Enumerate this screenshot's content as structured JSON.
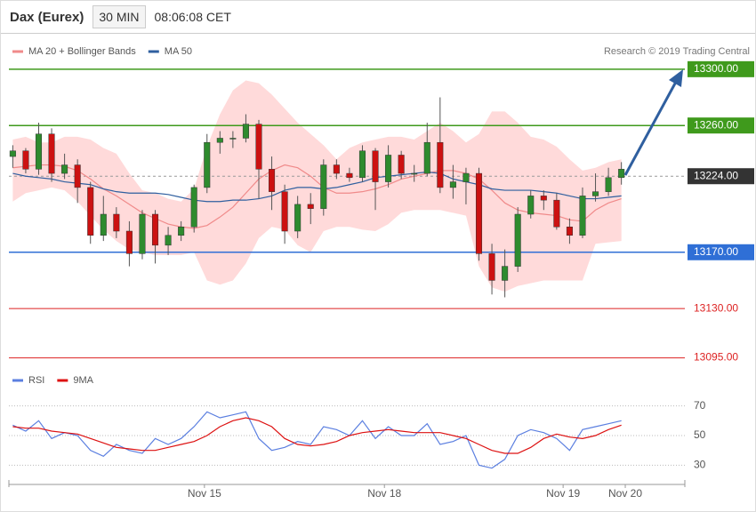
{
  "header": {
    "title": "Dax (Eurex)",
    "interval": "30 MIN",
    "time": "08:06:08 CET"
  },
  "credit": "Research © 2019 Trading Central",
  "chart_data": [
    {
      "type": "candlestick",
      "xlim": [
        -0.3,
        51.9
      ],
      "ylim": [
        13084,
        13310
      ],
      "up_color": "#2e8b2e",
      "down_color": "#cc1111",
      "candles": [
        [
          13238,
          13246,
          13230,
          13242
        ],
        [
          13242,
          13244,
          13226,
          13229
        ],
        [
          13229,
          13262,
          13225,
          13254
        ],
        [
          13254,
          13258,
          13220,
          13226
        ],
        [
          13226,
          13240,
          13222,
          13232
        ],
        [
          13232,
          13236,
          13205,
          13216
        ],
        [
          13216,
          13220,
          13176,
          13182
        ],
        [
          13182,
          13210,
          13178,
          13197
        ],
        [
          13197,
          13202,
          13180,
          13185
        ],
        [
          13185,
          13192,
          13160,
          13169
        ],
        [
          13169,
          13200,
          13165,
          13197
        ],
        [
          13197,
          13200,
          13162,
          13175
        ],
        [
          13175,
          13188,
          13168,
          13182
        ],
        [
          13182,
          13192,
          13178,
          13188
        ],
        [
          13188,
          13218,
          13184,
          13216
        ],
        [
          13216,
          13254,
          13212,
          13248
        ],
        [
          13248,
          13256,
          13240,
          13251
        ],
        [
          13251,
          13256,
          13244,
          13251
        ],
        [
          13251,
          13268,
          13248,
          13261
        ],
        [
          13261,
          13264,
          13208,
          13229
        ],
        [
          13229,
          13238,
          13200,
          13213
        ],
        [
          13213,
          13218,
          13176,
          13185
        ],
        [
          13185,
          13210,
          13180,
          13204
        ],
        [
          13204,
          13212,
          13190,
          13201
        ],
        [
          13201,
          13236,
          13196,
          13232
        ],
        [
          13232,
          13236,
          13222,
          13226
        ],
        [
          13226,
          13230,
          13220,
          13223
        ],
        [
          13223,
          13246,
          13220,
          13242
        ],
        [
          13242,
          13244,
          13200,
          13220
        ],
        [
          13220,
          13246,
          13216,
          13239
        ],
        [
          13239,
          13242,
          13222,
          13226
        ],
        [
          13226,
          13232,
          13220,
          13226
        ],
        [
          13226,
          13262,
          13224,
          13248
        ],
        [
          13248,
          13280,
          13212,
          13216
        ],
        [
          13216,
          13232,
          13208,
          13220
        ],
        [
          13220,
          13230,
          13204,
          13226
        ],
        [
          13226,
          13230,
          13164,
          13169
        ],
        [
          13169,
          13176,
          13140,
          13150
        ],
        [
          13150,
          13172,
          13138,
          13160
        ],
        [
          13160,
          13202,
          13156,
          13197
        ],
        [
          13197,
          13214,
          13194,
          13210
        ],
        [
          13210,
          13214,
          13200,
          13207
        ],
        [
          13207,
          13212,
          13186,
          13188
        ],
        [
          13188,
          13194,
          13176,
          13182
        ],
        [
          13182,
          13216,
          13180,
          13210
        ],
        [
          13210,
          13226,
          13206,
          13213
        ],
        [
          13213,
          13230,
          13210,
          13223
        ],
        [
          13223,
          13234,
          13218,
          13229
        ]
      ],
      "band_color": "#ffdada",
      "band_upper": [
        13250,
        13252,
        13248,
        13248,
        13252,
        13252,
        13250,
        13244,
        13240,
        13226,
        13214,
        13212,
        13208,
        13206,
        13215,
        13245,
        13268,
        13285,
        13292,
        13290,
        13282,
        13272,
        13262,
        13254,
        13246,
        13236,
        13244,
        13248,
        13250,
        13252,
        13252,
        13250,
        13256,
        13262,
        13256,
        13248,
        13254,
        13270,
        13270,
        13262,
        13252,
        13250,
        13245,
        13236,
        13228,
        13230,
        13234,
        13236
      ],
      "band_lower": [
        13206,
        13212,
        13214,
        13216,
        13214,
        13206,
        13196,
        13186,
        13178,
        13172,
        13170,
        13168,
        13168,
        13168,
        13170,
        13150,
        13147,
        13150,
        13162,
        13180,
        13188,
        13186,
        13175,
        13170,
        13185,
        13188,
        13188,
        13186,
        13185,
        13190,
        13198,
        13200,
        13200,
        13200,
        13198,
        13196,
        13160,
        13145,
        13142,
        13146,
        13148,
        13150,
        13150,
        13150,
        13150,
        13176,
        13177,
        13178
      ],
      "series": [
        {
          "name": "MA 20 + Bollinger Bands",
          "color": "#f08a8a",
          "values": [
            13230,
            13231,
            13232,
            13232,
            13231,
            13228,
            13222,
            13215,
            13210,
            13204,
            13198,
            13194,
            13190,
            13188,
            13187,
            13189,
            13195,
            13202,
            13212,
            13222,
            13228,
            13232,
            13230,
            13224,
            13216,
            13212,
            13212,
            13213,
            13215,
            13218,
            13222,
            13224,
            13226,
            13228,
            13228,
            13226,
            13222,
            13214,
            13205,
            13200,
            13198,
            13197,
            13196,
            13193,
            13192,
            13200,
            13205,
            13208
          ]
        },
        {
          "name": "MA 50",
          "color": "#2f5f9f",
          "values": [
            13226,
            13224,
            13223,
            13222,
            13220,
            13219,
            13218,
            13215,
            13213,
            13212,
            13212,
            13212,
            13211,
            13209,
            13207,
            13206,
            13206,
            13207,
            13207,
            13208,
            13210,
            13214,
            13216,
            13216,
            13215,
            13216,
            13218,
            13220,
            13223,
            13224,
            13225,
            13226,
            13227,
            13226,
            13222,
            13220,
            13218,
            13215,
            13214,
            13214,
            13214,
            13213,
            13212,
            13210,
            13208,
            13208,
            13209,
            13210
          ]
        }
      ],
      "levels": [
        {
          "value": 13300,
          "label": "13300.00",
          "color": "#3f9a1c",
          "filled": true,
          "dashed": false
        },
        {
          "value": 13260,
          "label": "13260.00",
          "color": "#3f9a1c",
          "filled": true,
          "dashed": false
        },
        {
          "value": 13224,
          "label": "13224.00",
          "color": "#333333",
          "filled": true,
          "dashed": true
        },
        {
          "value": 13170,
          "label": "13170.00",
          "color": "#2f6fd6",
          "filled": true,
          "dashed": false
        },
        {
          "value": 13130,
          "label": "13130.00",
          "color": "#dd2222",
          "filled": false,
          "dashed": false
        },
        {
          "value": 13095,
          "label": "13095.00",
          "color": "#dd2222",
          "filled": false,
          "dashed": false
        }
      ]
    },
    {
      "type": "line",
      "xlim": [
        -0.3,
        51.9
      ],
      "ylim": [
        20,
        80
      ],
      "yticks": [
        70,
        50,
        30
      ],
      "xticks": [
        {
          "value": 14.8,
          "label": "Nov 15"
        },
        {
          "value": 28.7,
          "label": "Nov 18"
        },
        {
          "value": 42.5,
          "label": "Nov 19"
        },
        {
          "value": 47.3,
          "label": "Nov 20"
        }
      ],
      "series": [
        {
          "name": "RSI",
          "color": "#5b7fe0",
          "values": [
            57,
            53,
            60,
            48,
            52,
            50,
            40,
            36,
            44,
            40,
            38,
            48,
            44,
            48,
            56,
            66,
            62,
            64,
            66,
            48,
            40,
            42,
            46,
            44,
            56,
            54,
            50,
            60,
            48,
            56,
            50,
            50,
            58,
            44,
            46,
            50,
            30,
            28,
            34,
            50,
            54,
            52,
            48,
            40,
            54,
            56,
            58,
            60
          ]
        },
        {
          "name": "9MA",
          "color": "#dd1111",
          "values": [
            56,
            55,
            55,
            53,
            52,
            51,
            48,
            45,
            42,
            41,
            40,
            40,
            42,
            44,
            46,
            50,
            56,
            60,
            62,
            60,
            56,
            48,
            44,
            43,
            44,
            46,
            50,
            52,
            53,
            54,
            53,
            52,
            52,
            52,
            50,
            48,
            44,
            40,
            38,
            38,
            42,
            48,
            51,
            49,
            48,
            50,
            54,
            57
          ]
        }
      ]
    }
  ]
}
